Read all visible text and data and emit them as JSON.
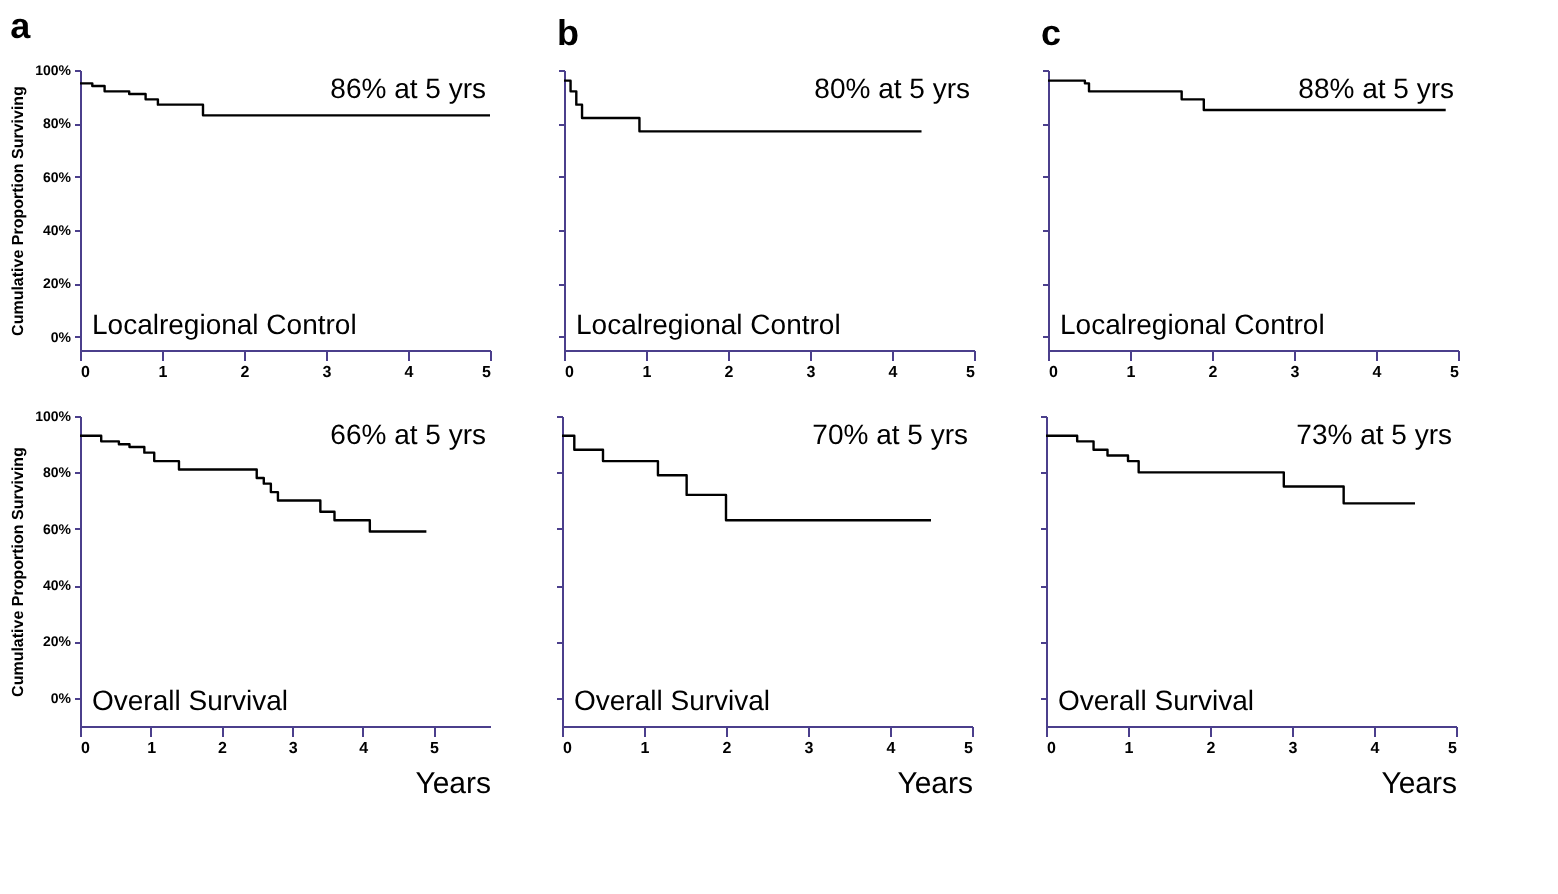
{
  "chart_data": [
    {
      "type": "step",
      "title": "a",
      "ylabel": "Cumulative Proportion Surviving",
      "annotations": [
        "86% at 5 yrs",
        "Localregional Control"
      ],
      "xlim": [
        0,
        5
      ],
      "xticks": [
        0,
        1,
        2,
        3,
        4,
        5
      ],
      "ylim": [
        -5,
        100
      ],
      "yticks": [
        {
          "value": 0,
          "label": "0%"
        },
        {
          "value": 20,
          "label": "20%"
        },
        {
          "value": 40,
          "label": "40%"
        },
        {
          "value": 60,
          "label": "60%"
        },
        {
          "value": 80,
          "label": "80%"
        },
        {
          "value": 100,
          "label": "100%"
        }
      ],
      "grid": false,
      "series": [
        {
          "color": "#000000",
          "x": [
            0,
            0.15,
            0.3,
            0.6,
            0.8,
            0.95,
            1.5,
            5.0
          ],
          "values": [
            95,
            94,
            92,
            91,
            89,
            87,
            83,
            83
          ]
        }
      ]
    },
    {
      "type": "step",
      "title": "b",
      "annotations": [
        "80% at 5 yrs",
        "Localregional Control"
      ],
      "xlim": [
        0,
        5
      ],
      "xticks": [
        0,
        1,
        2,
        3,
        4,
        5
      ],
      "ylim": [
        -5,
        100
      ],
      "yticks": [
        0,
        20,
        40,
        60,
        80,
        100
      ],
      "tick_labels": "x",
      "grid": false,
      "series": [
        {
          "color": "#000000",
          "x": [
            0,
            0.08,
            0.15,
            0.22,
            0.92,
            4.36
          ],
          "values": [
            96,
            92,
            87,
            82,
            77,
            77
          ]
        }
      ]
    },
    {
      "type": "step",
      "title": "c",
      "annotations": [
        "88% at 5 yrs",
        "Localregional Control"
      ],
      "xlim": [
        0,
        5
      ],
      "xticks": [
        0,
        1,
        2,
        3,
        4,
        5
      ],
      "ylim": [
        -5,
        100
      ],
      "yticks": [
        0,
        20,
        40,
        60,
        80,
        100
      ],
      "tick_labels": "x",
      "grid": false,
      "series": [
        {
          "color": "#000000",
          "x": [
            0,
            0.45,
            0.5,
            1.63,
            1.9,
            4.85
          ],
          "values": [
            96,
            95,
            92,
            89,
            85,
            85
          ]
        }
      ]
    },
    {
      "type": "step",
      "xlabel": "Years",
      "ylabel": "Cumulative Proportion Surviving",
      "annotations": [
        "66% at 5 yrs",
        "Overall Survival"
      ],
      "xlim": [
        0,
        5.8
      ],
      "xticks": [
        0,
        1,
        2,
        3,
        4,
        5
      ],
      "ylim": [
        -10,
        100
      ],
      "yticks": [
        {
          "value": 0,
          "label": "0%"
        },
        {
          "value": 20,
          "label": "20%"
        },
        {
          "value": 40,
          "label": "40%"
        },
        {
          "value": 60,
          "label": "60%"
        },
        {
          "value": 80,
          "label": "80%"
        },
        {
          "value": 100,
          "label": "100%"
        }
      ],
      "grid": false,
      "series": [
        {
          "color": "#000000",
          "x": [
            0,
            0.3,
            0.55,
            0.7,
            0.91,
            1.05,
            1.4,
            2.5,
            2.6,
            2.7,
            2.8,
            3.4,
            3.6,
            4.1,
            4.9
          ],
          "values": [
            93,
            91,
            90,
            89,
            87,
            84,
            81,
            78,
            76,
            73,
            70,
            66,
            63,
            59,
            59
          ]
        }
      ]
    },
    {
      "type": "step",
      "xlabel": "Years",
      "annotations": [
        "70% at 5 yrs",
        "Overall Survival"
      ],
      "xlim": [
        0,
        5
      ],
      "xticks": [
        0,
        1,
        2,
        3,
        4,
        5
      ],
      "ylim": [
        -10,
        100
      ],
      "yticks": [
        0,
        20,
        40,
        60,
        80,
        100
      ],
      "tick_labels": "x",
      "grid": false,
      "series": [
        {
          "color": "#000000",
          "x": [
            0,
            0.15,
            0.5,
            1.17,
            1.52,
            2.0,
            4.5
          ],
          "values": [
            93,
            88,
            84,
            79,
            72,
            63,
            63
          ]
        }
      ]
    },
    {
      "type": "step",
      "xlabel": "Years",
      "annotations": [
        "73% at 5 yrs",
        "Overall Survival"
      ],
      "xlim": [
        0,
        5
      ],
      "xticks": [
        0,
        1,
        2,
        3,
        4,
        5
      ],
      "ylim": [
        -10,
        100
      ],
      "yticks": [
        0,
        20,
        40,
        60,
        80,
        100
      ],
      "tick_labels": "x",
      "grid": false,
      "series": [
        {
          "color": "#000000",
          "x": [
            0,
            0.38,
            0.58,
            0.75,
            1.0,
            1.13,
            2.9,
            3.63,
            4.5
          ],
          "values": [
            93,
            91,
            88,
            86,
            84,
            80,
            75,
            69,
            69
          ]
        }
      ]
    }
  ]
}
